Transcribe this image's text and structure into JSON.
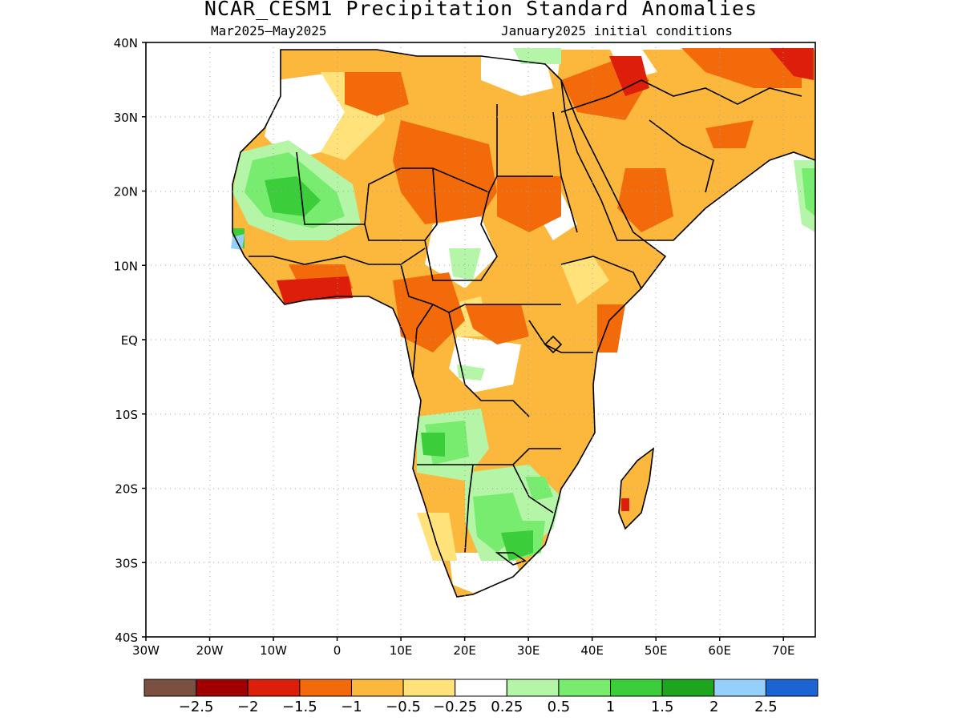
{
  "title": "NCAR_CESM1 Precipitation Standard Anomalies",
  "subtitle_left": "Mar2025—May2025",
  "subtitle_right": "January2025 initial conditions",
  "axes": {
    "lat_labels": [
      "40N",
      "30N",
      "20N",
      "10N",
      "EQ",
      "10S",
      "20S",
      "30S",
      "40S"
    ],
    "lon_labels": [
      "30W",
      "20W",
      "10W",
      "0",
      "10E",
      "20E",
      "30E",
      "40E",
      "50E",
      "60E",
      "70E"
    ],
    "lat_range": [
      -40,
      40
    ],
    "lon_range": [
      -30,
      75
    ],
    "grid": "dotted"
  },
  "colorbar": {
    "colors": [
      "#7a5040",
      "#a00000",
      "#dc1e0a",
      "#f26a0a",
      "#fbb83c",
      "#ffe27a",
      "#ffffff",
      "#b4f5a8",
      "#78ec6e",
      "#3cce3a",
      "#1ea51e",
      "#96d0fa",
      "#1c64d2"
    ],
    "labels": [
      "−2.5",
      "−2",
      "−1.5",
      "−1",
      "−0.5",
      "−0.25",
      "0.25",
      "0.5",
      "1",
      "1.5",
      "2",
      "2.5"
    ]
  }
}
